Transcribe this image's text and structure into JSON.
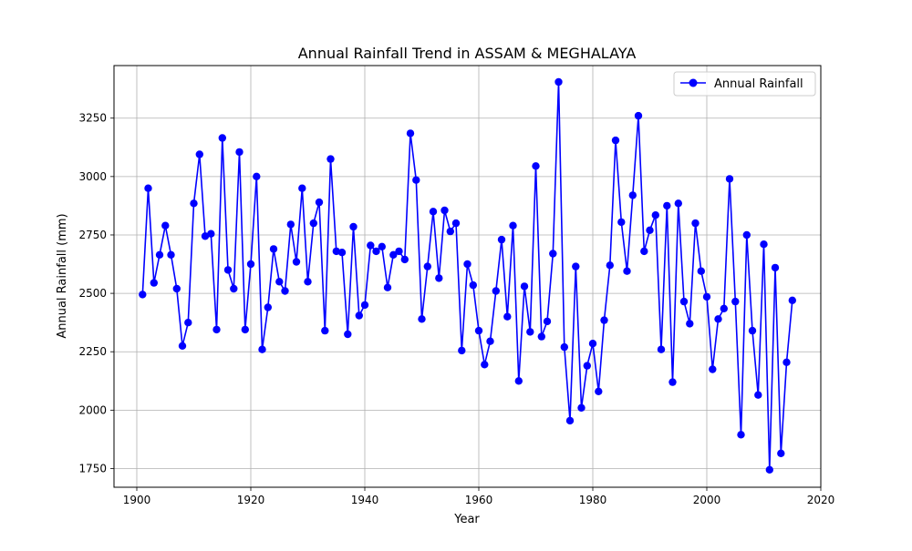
{
  "chart_data": {
    "type": "line",
    "title": "Annual Rainfall Trend in ASSAM & MEGHALAYA",
    "xlabel": "Year",
    "ylabel": "Annual Rainfall (mm)",
    "xlim": [
      1896,
      2020
    ],
    "ylim": [
      1670,
      3475
    ],
    "x_ticks": [
      1900,
      1920,
      1940,
      1960,
      1980,
      2000,
      2020
    ],
    "y_ticks": [
      1750,
      2000,
      2250,
      2500,
      2750,
      3000,
      3250
    ],
    "grid": true,
    "legend_position": "top-right",
    "line_color": "#0000ff",
    "marker": "circle",
    "series": [
      {
        "name": "Annual Rainfall",
        "x": [
          1901,
          1902,
          1903,
          1904,
          1905,
          1906,
          1907,
          1908,
          1909,
          1910,
          1911,
          1912,
          1913,
          1914,
          1915,
          1916,
          1917,
          1918,
          1919,
          1920,
          1921,
          1922,
          1923,
          1924,
          1925,
          1926,
          1927,
          1928,
          1929,
          1930,
          1931,
          1932,
          1933,
          1934,
          1935,
          1936,
          1937,
          1938,
          1939,
          1940,
          1941,
          1942,
          1943,
          1944,
          1945,
          1946,
          1947,
          1948,
          1949,
          1950,
          1951,
          1952,
          1953,
          1954,
          1955,
          1956,
          1957,
          1958,
          1959,
          1960,
          1961,
          1962,
          1963,
          1964,
          1965,
          1966,
          1967,
          1968,
          1969,
          1970,
          1971,
          1972,
          1973,
          1974,
          1975,
          1976,
          1977,
          1978,
          1979,
          1980,
          1981,
          1982,
          1983,
          1984,
          1985,
          1986,
          1987,
          1988,
          1989,
          1990,
          1991,
          1992,
          1993,
          1994,
          1995,
          1996,
          1997,
          1998,
          1999,
          2000,
          2001,
          2002,
          2003,
          2004,
          2005,
          2006,
          2007,
          2008,
          2009,
          2010,
          2011,
          2012,
          2013,
          2014,
          2015
        ],
        "values": [
          2495,
          2950,
          2545,
          2665,
          2790,
          2665,
          2520,
          2275,
          2375,
          2885,
          3095,
          2745,
          2755,
          2345,
          3165,
          2600,
          2520,
          3105,
          2345,
          2625,
          3000,
          2260,
          2440,
          2690,
          2550,
          2510,
          2795,
          2635,
          2950,
          2550,
          2800,
          2890,
          2340,
          3075,
          2680,
          2675,
          2325,
          2785,
          2405,
          2450,
          2705,
          2680,
          2700,
          2525,
          2665,
          2680,
          2645,
          3185,
          2985,
          2390,
          2615,
          2850,
          2565,
          2855,
          2765,
          2800,
          2255,
          2625,
          2535,
          2340,
          2195,
          2295,
          2510,
          2730,
          2400,
          2790,
          2125,
          2530,
          2335,
          3045,
          2315,
          2380,
          2670,
          3405,
          2270,
          1955,
          2615,
          2010,
          2190,
          2285,
          2080,
          2385,
          2620,
          3155,
          2805,
          2595,
          2920,
          3260,
          2680,
          2770,
          2835,
          2260,
          2875,
          2120,
          2885,
          2465,
          2370,
          2800,
          2595,
          2485,
          2175,
          2390,
          2435,
          2990,
          2465,
          1895,
          2750,
          2340,
          2065,
          2710,
          1745,
          2610,
          1815,
          2205,
          2470
        ]
      }
    ]
  }
}
